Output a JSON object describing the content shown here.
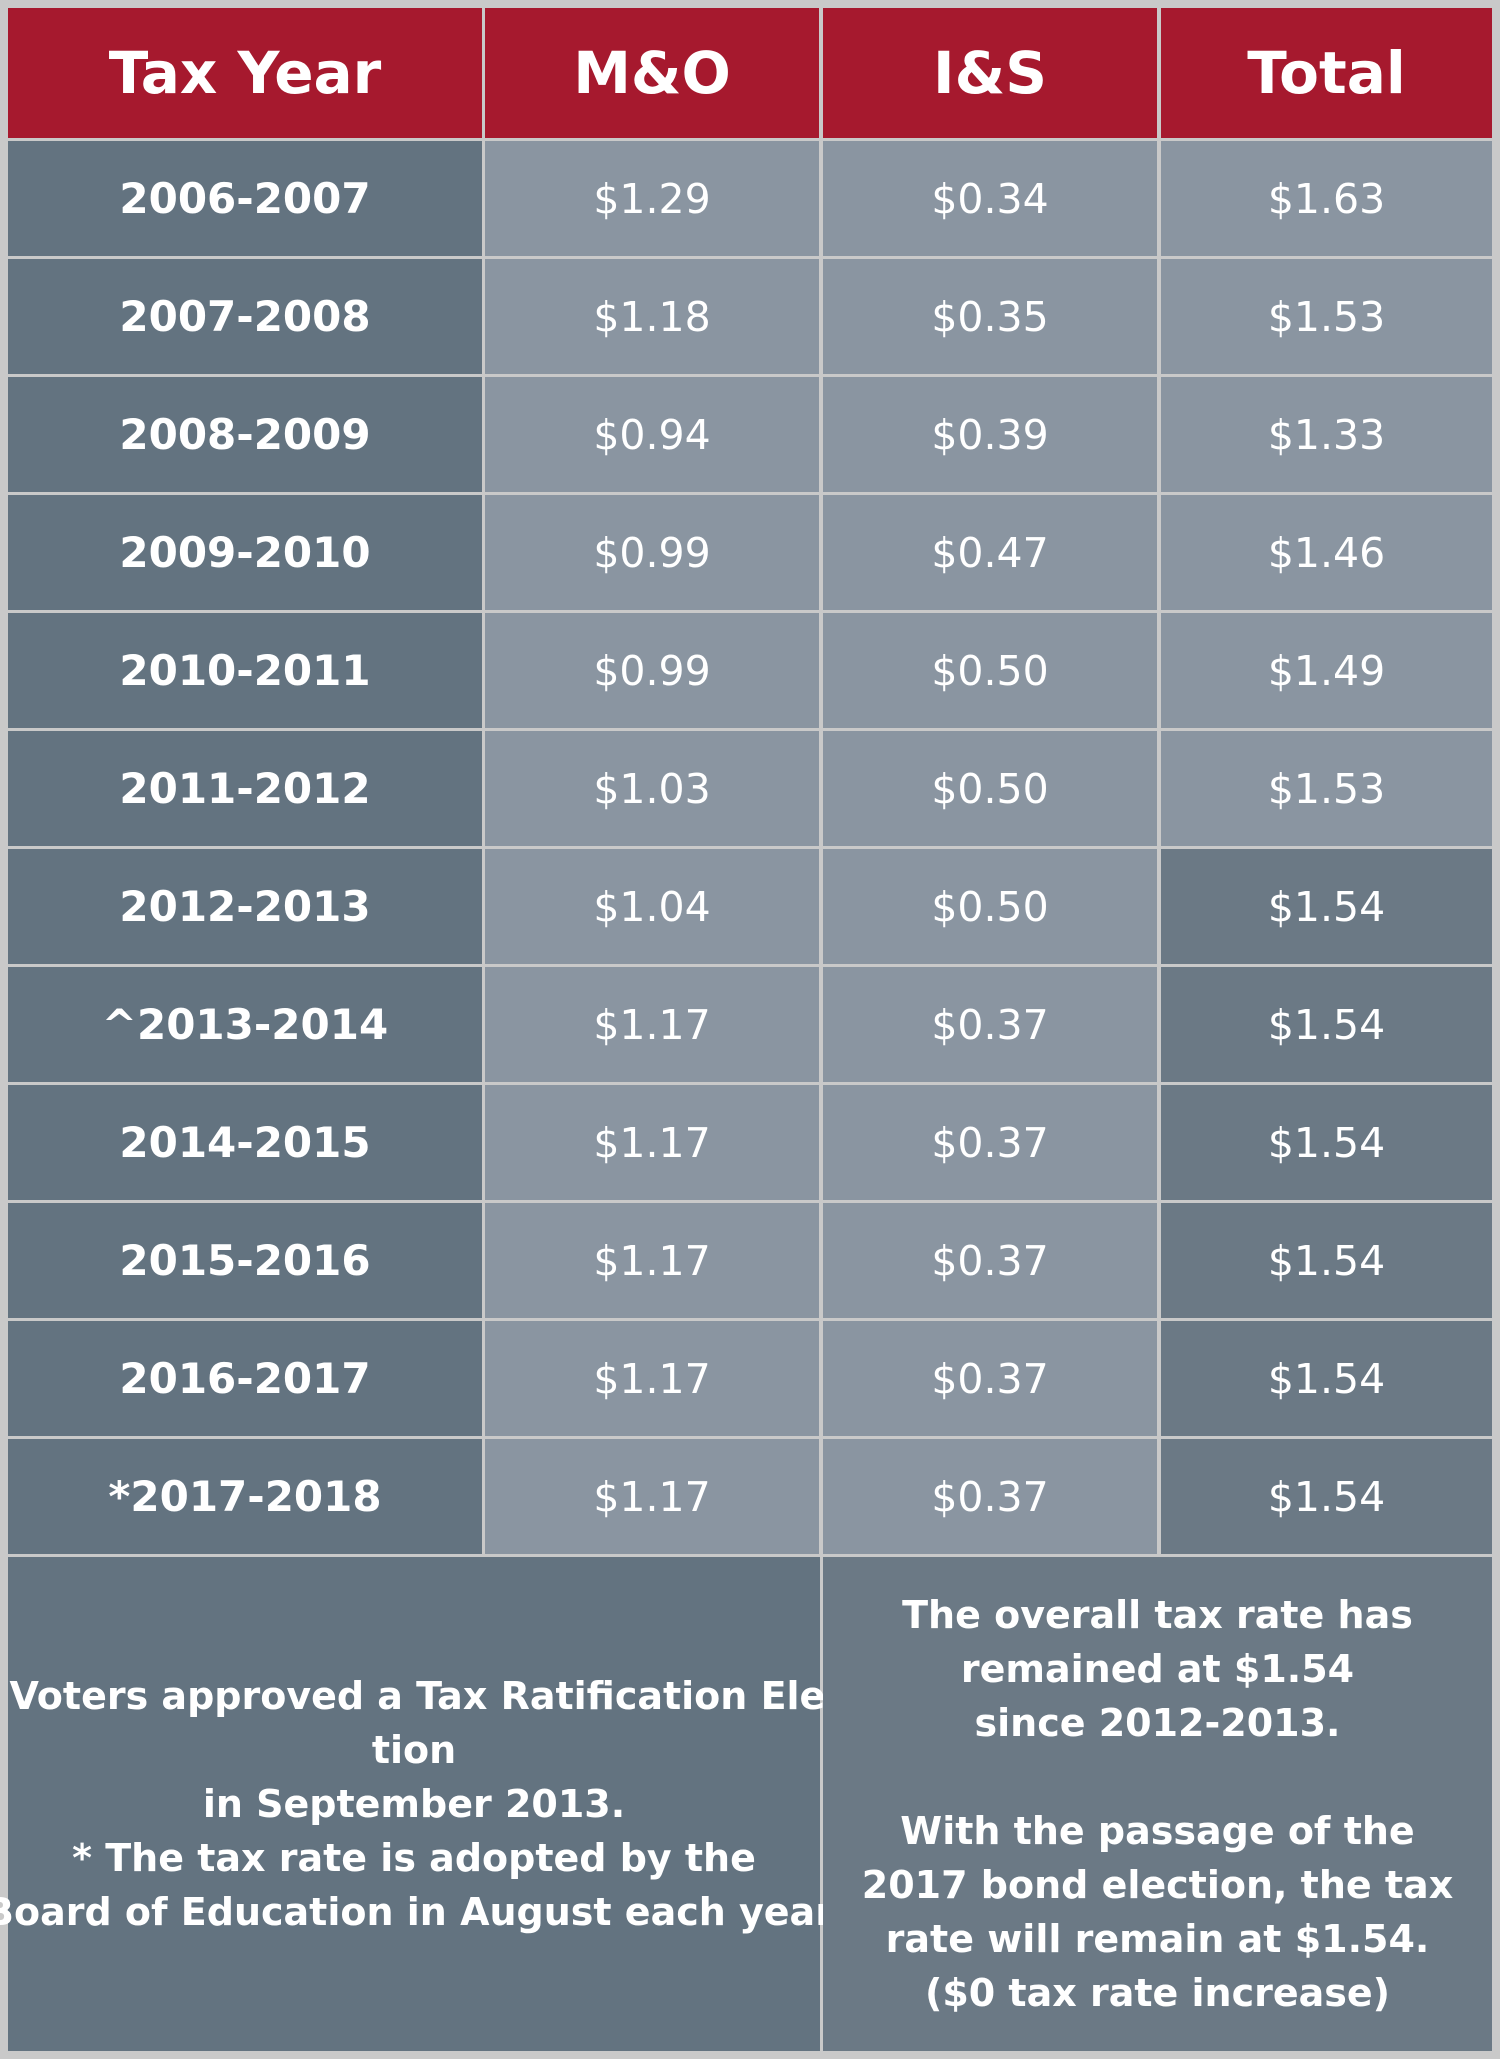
{
  "table": {
    "headers": [
      "Tax Year",
      "M&O",
      "I&S",
      "Total"
    ],
    "rows": [
      {
        "year": "2006-2007",
        "mo": "$1.29",
        "is": "$0.34",
        "total": "$1.63"
      },
      {
        "year": "2007-2008",
        "mo": "$1.18",
        "is": "$0.35",
        "total": "$1.53"
      },
      {
        "year": "2008-2009",
        "mo": "$0.94",
        "is": "$0.39",
        "total": "$1.33"
      },
      {
        "year": "2009-2010",
        "mo": "$0.99",
        "is": "$0.47",
        "total": "$1.46"
      },
      {
        "year": "2010-2011",
        "mo": "$0.99",
        "is": "$0.50",
        "total": "$1.49"
      },
      {
        "year": "2011-2012",
        "mo": "$1.03",
        "is": "$0.50",
        "total": "$1.53"
      },
      {
        "year": "2012-2013",
        "mo": "$1.04",
        "is": "$0.50",
        "total": "$1.54"
      },
      {
        "year": "^2013-2014",
        "mo": "$1.17",
        "is": "$0.37",
        "total": "$1.54"
      },
      {
        "year": "2014-2015",
        "mo": "$1.17",
        "is": "$0.37",
        "total": "$1.54"
      },
      {
        "year": "2015-2016",
        "mo": "$1.17",
        "is": "$0.37",
        "total": "$1.54"
      },
      {
        "year": "2016-2017",
        "mo": "$1.17",
        "is": "$0.37",
        "total": "$1.54"
      },
      {
        "year": "*2017-2018",
        "mo": "$1.17",
        "is": "$0.37",
        "total": "$1.54"
      }
    ]
  },
  "notes": {
    "left": [
      "^ Voters approved a Tax Ratification Elec-",
      "tion",
      "in September 2013.",
      "* The tax rate is adopted by the",
      "Board of Education in August each year."
    ],
    "right": [
      "The overall tax rate has",
      "remained at $1.54",
      "since 2012-2013.",
      "",
      "With the passage of the",
      "2017 bond election, the tax",
      "rate will remain at $1.54.",
      "($0 tax rate increase)"
    ]
  },
  "colors": {
    "header": "#a6192e",
    "year_column": "#637380",
    "value_light": "#8a95a1",
    "value_dark": "#6b7985",
    "grid": "#c9c9c9",
    "text": "#ffffff"
  }
}
